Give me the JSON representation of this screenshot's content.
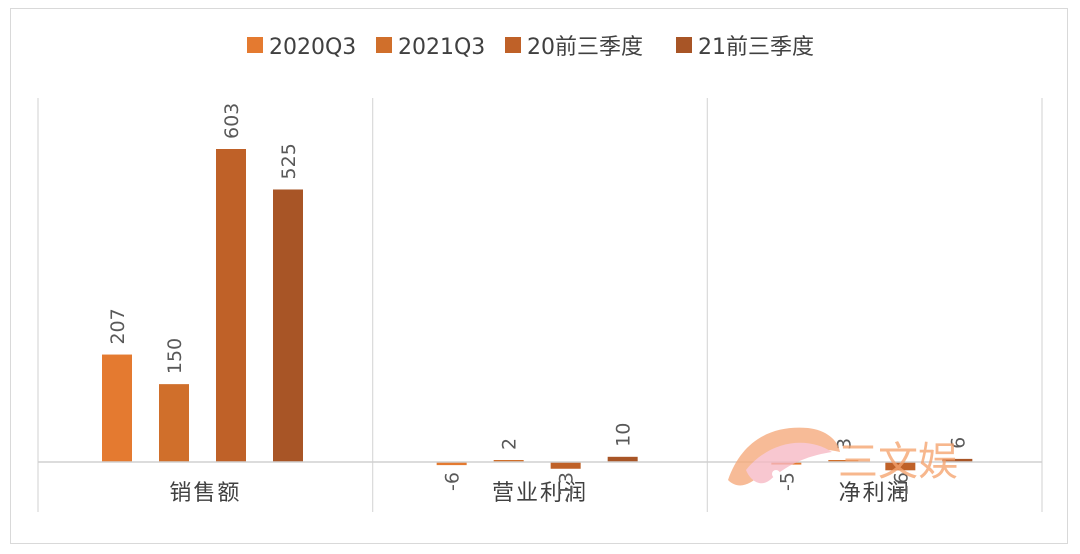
{
  "chart_data": {
    "type": "bar",
    "categories": [
      "销售额",
      "营业利润",
      "净利润"
    ],
    "series": [
      {
        "name": "2020Q3",
        "color": "#e47a30",
        "values": [
          207,
          -6,
          -5
        ]
      },
      {
        "name": "2021Q3",
        "color": "#d06f2b",
        "values": [
          150,
          2,
          3
        ]
      },
      {
        "name": "20前三季度",
        "color": "#bf6128",
        "values": [
          603,
          -13,
          -16
        ]
      },
      {
        "name": "21前三季度",
        "color": "#a85526",
        "values": [
          525,
          10,
          6
        ]
      }
    ],
    "data_labels": [
      [
        "207",
        "-6",
        "-5"
      ],
      [
        "150",
        "2",
        "3"
      ],
      [
        "603",
        "-13",
        "-16"
      ],
      [
        "525",
        "10",
        "6"
      ]
    ],
    "ylim": [
      -30,
      800
    ],
    "grid": "vertical-category-separators",
    "legend_position": "top"
  },
  "watermark": {
    "text": "三文娱",
    "colors": [
      "#f6a97a",
      "#f7b8c4"
    ]
  }
}
